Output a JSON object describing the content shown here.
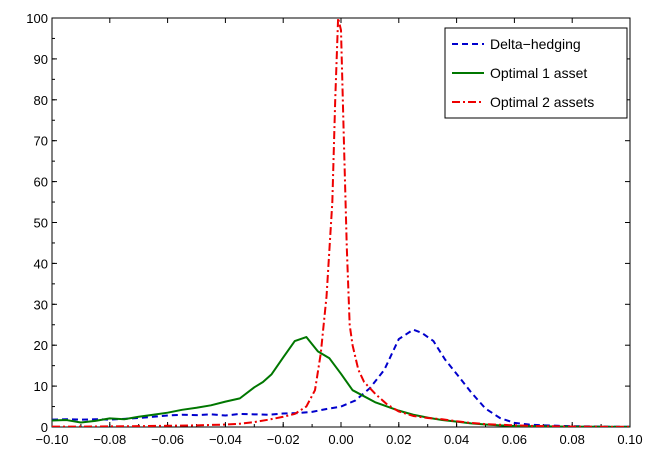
{
  "chart_data": {
    "type": "line",
    "title": "",
    "xlabel": "",
    "ylabel": "",
    "xlim": [
      -0.1,
      0.1
    ],
    "ylim": [
      0,
      100
    ],
    "grid": false,
    "legend_position": "top-right",
    "x_ticks": [
      "−0.10",
      "−0.08",
      "−0.06",
      "−0.04",
      "−0.02",
      "0.00",
      "0.02",
      "0.04",
      "0.06",
      "0.08",
      "0.10"
    ],
    "x_tick_values": [
      -0.1,
      -0.08,
      -0.06,
      -0.04,
      -0.02,
      0.0,
      0.02,
      0.04,
      0.06,
      0.08,
      0.1
    ],
    "y_ticks": [
      "0",
      "10",
      "20",
      "30",
      "40",
      "50",
      "60",
      "70",
      "80",
      "90",
      "100"
    ],
    "y_tick_values": [
      0,
      10,
      20,
      30,
      40,
      50,
      60,
      70,
      80,
      90,
      100
    ],
    "series": [
      {
        "name": "Delta−hedging",
        "color": "#0000cc",
        "dash": "dashed",
        "x": [
          -0.1,
          -0.095,
          -0.09,
          -0.085,
          -0.08,
          -0.075,
          -0.07,
          -0.065,
          -0.06,
          -0.055,
          -0.05,
          -0.045,
          -0.04,
          -0.035,
          -0.03,
          -0.025,
          -0.02,
          -0.015,
          -0.01,
          -0.005,
          0.0,
          0.005,
          0.01,
          0.015,
          0.02,
          0.025,
          0.028,
          0.032,
          0.036,
          0.04,
          0.045,
          0.05,
          0.055,
          0.06,
          0.065,
          0.07,
          0.075,
          0.08,
          0.085,
          0.09,
          0.095,
          0.1
        ],
        "y": [
          1.8,
          1.9,
          1.8,
          1.9,
          1.8,
          2.0,
          2.2,
          2.5,
          2.8,
          3.0,
          2.9,
          3.1,
          2.8,
          3.2,
          3.1,
          3.0,
          3.3,
          3.4,
          3.7,
          4.4,
          5.0,
          6.5,
          9.5,
          14.0,
          21.5,
          23.8,
          23.0,
          21.0,
          16.5,
          13.0,
          8.5,
          4.5,
          2.2,
          1.0,
          0.6,
          0.4,
          0.3,
          0.2,
          0.15,
          0.1,
          0.05,
          0.05
        ]
      },
      {
        "name": "Optimal 1 asset",
        "color": "#007700",
        "dash": "solid",
        "x": [
          -0.1,
          -0.095,
          -0.09,
          -0.085,
          -0.08,
          -0.075,
          -0.07,
          -0.065,
          -0.06,
          -0.055,
          -0.05,
          -0.045,
          -0.04,
          -0.035,
          -0.03,
          -0.027,
          -0.024,
          -0.02,
          -0.016,
          -0.012,
          -0.008,
          -0.004,
          0.0,
          0.004,
          0.008,
          0.012,
          0.016,
          0.02,
          0.025,
          0.03,
          0.035,
          0.04,
          0.045,
          0.05,
          0.055,
          0.06,
          0.07,
          0.08,
          0.09,
          0.1
        ],
        "y": [
          1.6,
          1.7,
          1.1,
          1.5,
          2.1,
          1.9,
          2.5,
          3.0,
          3.5,
          4.2,
          4.7,
          5.3,
          6.2,
          7.0,
          9.7,
          11.0,
          12.9,
          17.0,
          21.0,
          22.0,
          18.5,
          16.8,
          13.0,
          9.0,
          7.5,
          6.0,
          5.0,
          4.0,
          3.0,
          2.3,
          1.7,
          1.3,
          0.9,
          0.6,
          0.4,
          0.25,
          0.15,
          0.1,
          0.05,
          0.02
        ]
      },
      {
        "name": "Optimal 2 assets",
        "color": "#ee0000",
        "dash": "dash-dot",
        "x": [
          -0.1,
          -0.09,
          -0.08,
          -0.07,
          -0.06,
          -0.05,
          -0.04,
          -0.035,
          -0.03,
          -0.025,
          -0.02,
          -0.016,
          -0.012,
          -0.009,
          -0.007,
          -0.005,
          -0.003,
          -0.002,
          -0.001,
          0.0,
          0.001,
          0.002,
          0.003,
          0.004,
          0.006,
          0.008,
          0.012,
          0.016,
          0.02,
          0.025,
          0.03,
          0.035,
          0.04,
          0.045,
          0.05,
          0.06,
          0.07,
          0.08,
          0.09,
          0.1
        ],
        "y": [
          0.1,
          0.1,
          0.15,
          0.2,
          0.3,
          0.4,
          0.6,
          0.8,
          1.2,
          1.8,
          2.5,
          3.2,
          5.0,
          9.0,
          18.0,
          32.0,
          55.0,
          80.0,
          100.0,
          97.0,
          70.0,
          44.0,
          25.0,
          20.0,
          14.0,
          11.0,
          8.0,
          5.5,
          3.8,
          2.7,
          2.2,
          1.9,
          1.4,
          1.0,
          0.7,
          0.4,
          0.2,
          0.1,
          0.05,
          0.02
        ]
      }
    ]
  }
}
